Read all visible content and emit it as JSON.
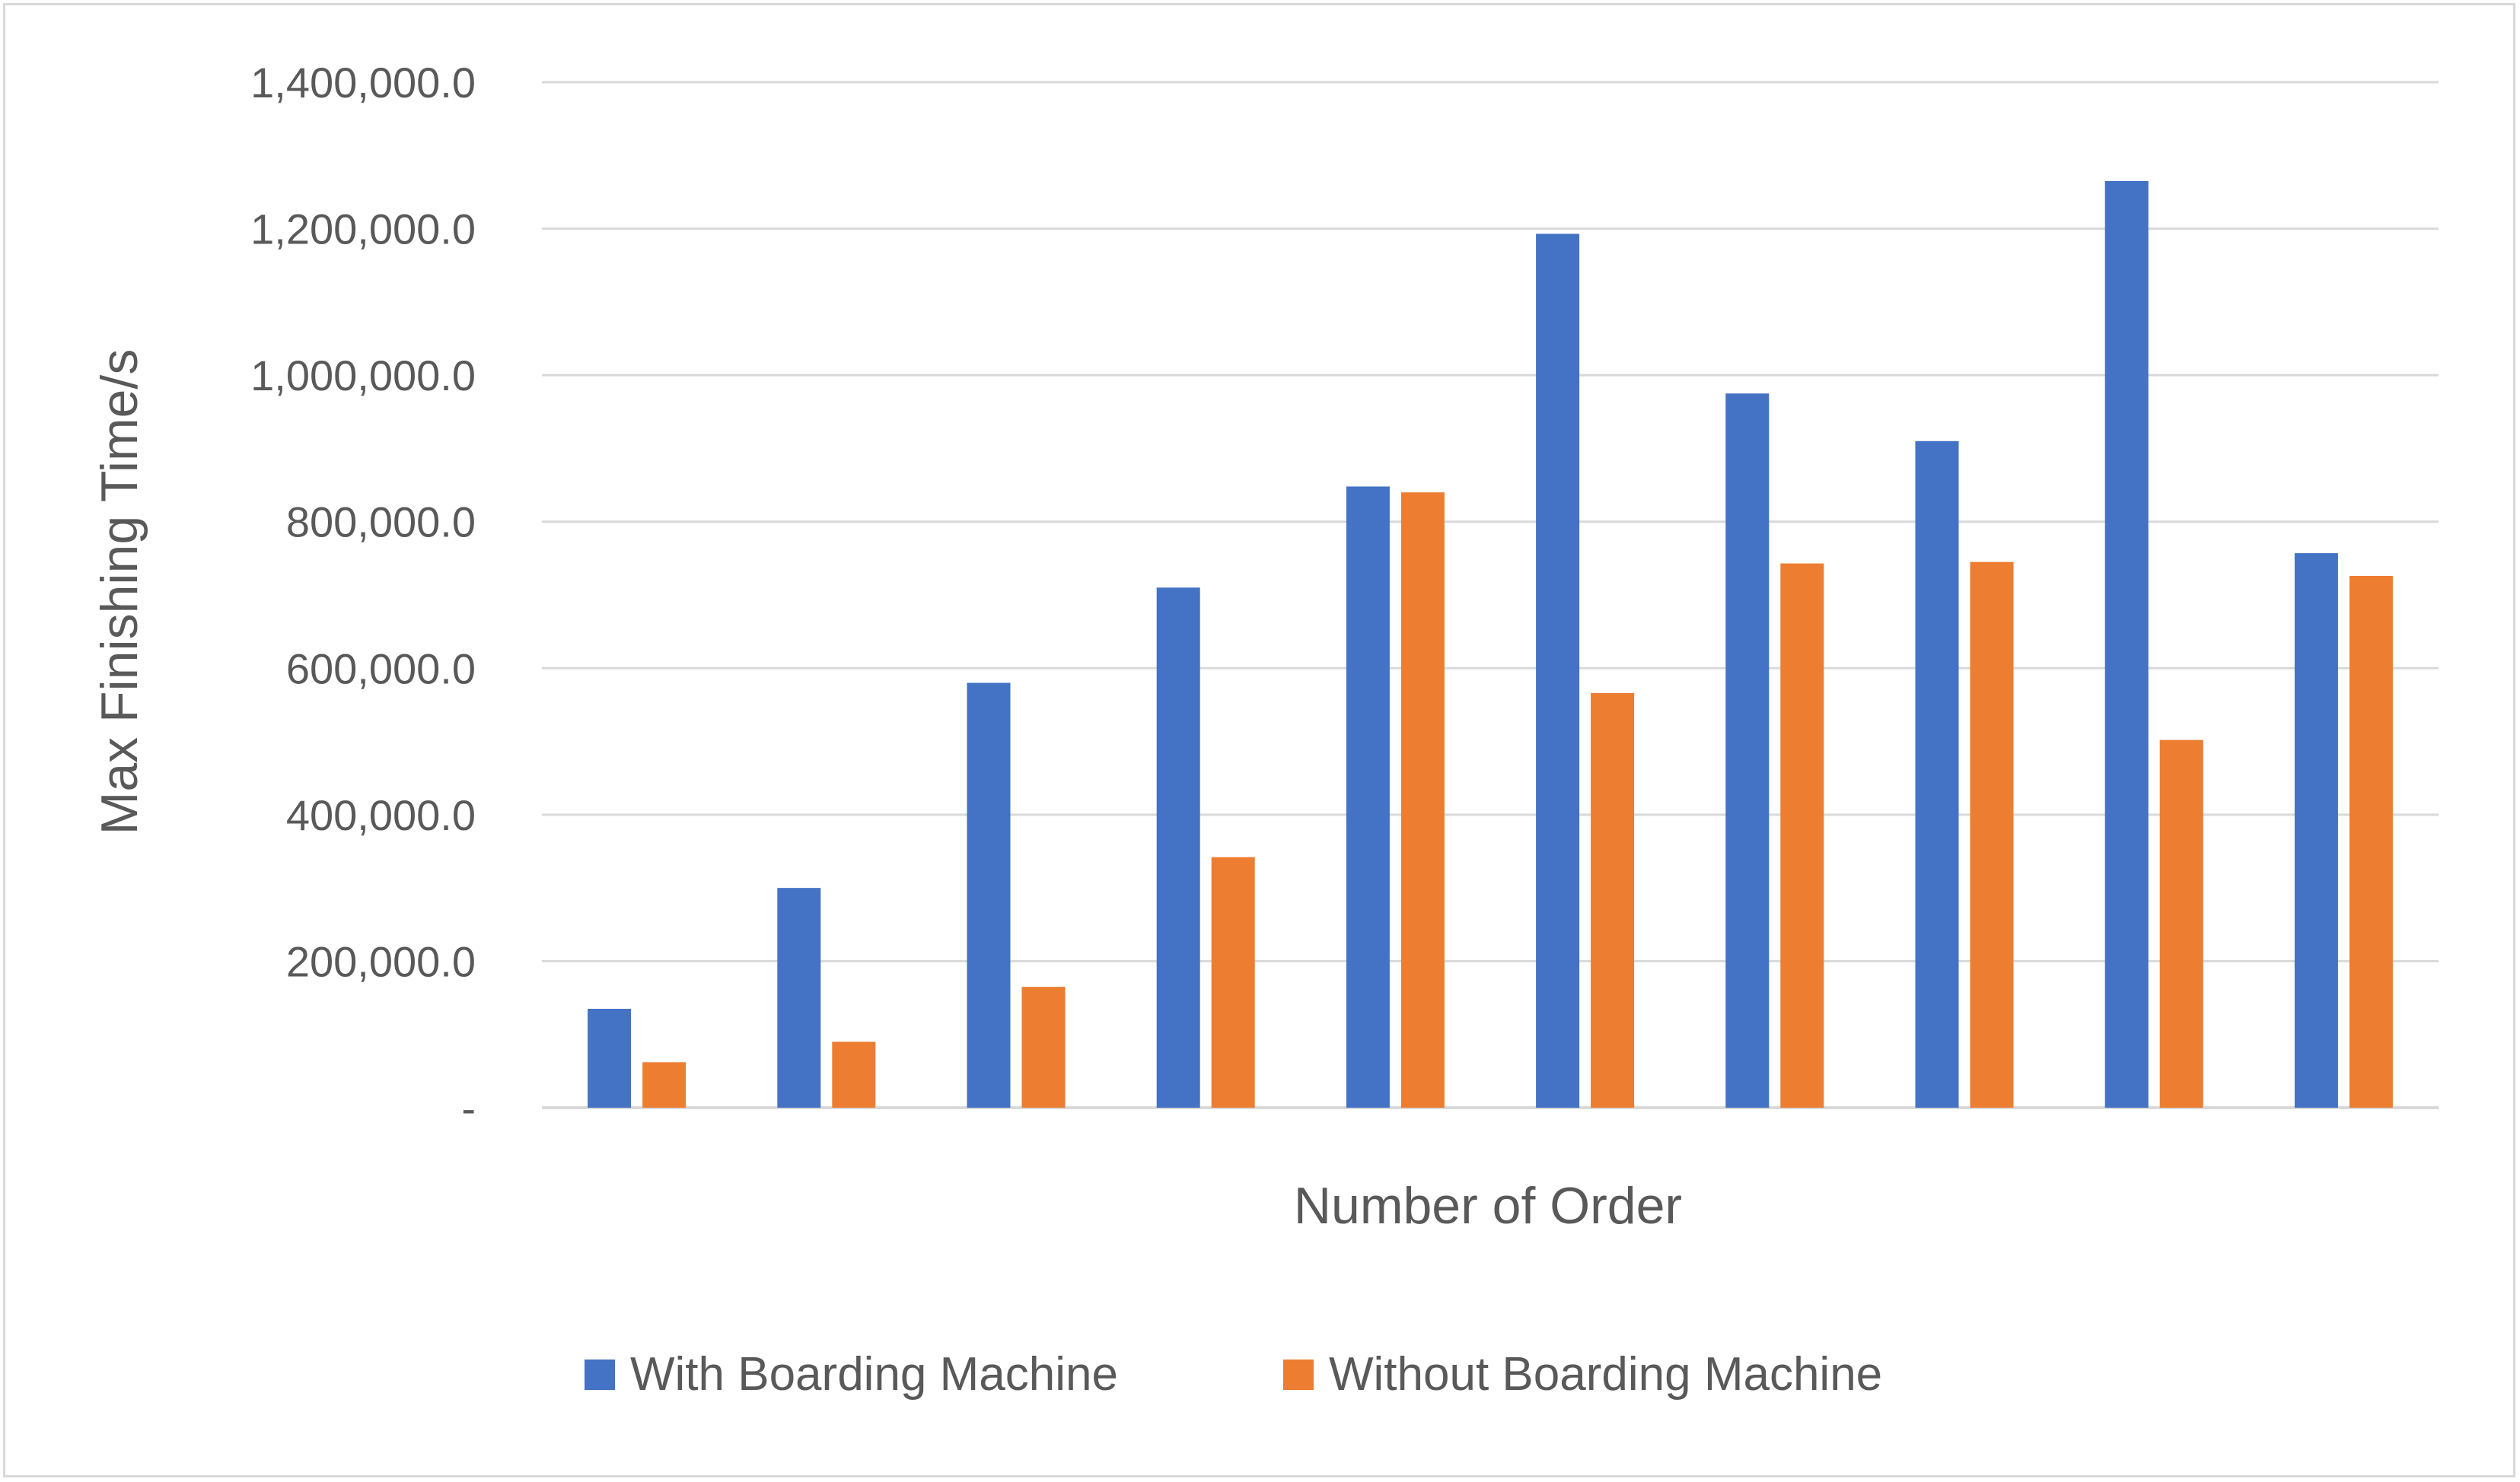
{
  "chart_data": {
    "type": "bar",
    "categories": [
      "",
      "",
      "",
      "",
      "",
      "",
      "",
      "",
      "",
      ""
    ],
    "series": [
      {
        "name": "With Boarding Machine",
        "color": "#4472C4",
        "values": [
          135000,
          300000,
          580000,
          710000,
          848000,
          1193000,
          975000,
          910000,
          1265000,
          757000
        ]
      },
      {
        "name": "Without Boarding Machine",
        "color": "#ED7D31",
        "values": [
          62000,
          90000,
          165000,
          342000,
          840000,
          566000,
          743000,
          745000,
          502000,
          726000
        ]
      }
    ],
    "xlabel": "Number of Order",
    "ylabel": "Max Finishing Time/s",
    "ylim": [
      0,
      1400000
    ],
    "yticks": [
      0,
      200000,
      400000,
      600000,
      800000,
      1000000,
      1200000,
      1400000
    ],
    "ytick_labels": [
      "-",
      "200,000.0",
      "400,000.0",
      "600,000.0",
      "800,000.0",
      "1,000,000.0",
      "1,200,000.0",
      "1,400,000.0"
    ],
    "grid": true,
    "gridline_color": "#d9d9d9",
    "legend_position": "bottom"
  }
}
